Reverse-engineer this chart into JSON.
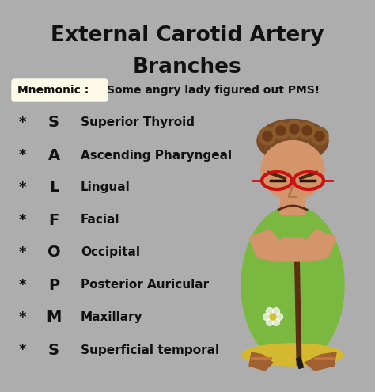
{
  "title_line1": "External Carotid Artery",
  "title_line2": "Branches",
  "bg_color": "#adadad",
  "title_color": "#111111",
  "title_fontsize": 19,
  "mnemonic_label": "Mnemonic : ",
  "mnemonic_text": "Some angry lady figured out PMS!",
  "mnemonic_label_color": "#111111",
  "mnemonic_text_color": "#111111",
  "mnemonic_bg_color": "#fdfbe8",
  "rows": [
    {
      "star": "*",
      "letter": "S",
      "description": "Superior Thyroid"
    },
    {
      "star": "*",
      "letter": "A",
      "description": "Ascending Pharyngeal"
    },
    {
      "star": "*",
      "letter": "L",
      "description": "Lingual"
    },
    {
      "star": "*",
      "letter": "F",
      "description": "Facial"
    },
    {
      "star": "*",
      "letter": "O",
      "description": "Occipital"
    },
    {
      "star": "*",
      "letter": "P",
      "description": "Posterior Auricular"
    },
    {
      "star": "*",
      "letter": "M",
      "description": "Maxillary"
    },
    {
      "star": "*",
      "letter": "S",
      "description": "Superficial temporal"
    }
  ],
  "star_color": "#111111",
  "letter_color": "#111111",
  "desc_color": "#111111",
  "star_fontsize": 13,
  "letter_fontsize": 14,
  "desc_fontsize": 11,
  "mnemonic_fontsize": 10,
  "figwidth": 4.74,
  "figheight": 4.95,
  "dpi": 100
}
